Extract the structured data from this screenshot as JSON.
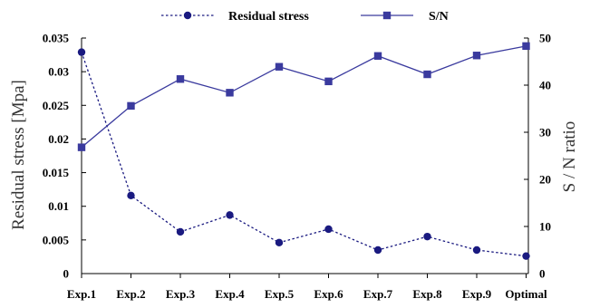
{
  "chart_data": {
    "type": "line",
    "categories": [
      "Exp.1",
      "Exp.2",
      "Exp.3",
      "Exp.4",
      "Exp.5",
      "Exp.6",
      "Exp.7",
      "Exp.8",
      "Exp.9",
      "Optimal"
    ],
    "series": [
      {
        "name": "Residual stress",
        "axis": "left",
        "style": "dotted",
        "marker": "circle",
        "color": "#1a1a80",
        "values": [
          0.0329,
          0.0116,
          0.0062,
          0.0087,
          0.0046,
          0.0066,
          0.0035,
          0.0055,
          0.0035,
          0.0026
        ]
      },
      {
        "name": "S/N",
        "axis": "right",
        "style": "solid",
        "marker": "square",
        "color": "#3a3a9e",
        "values": [
          26.8,
          35.6,
          41.3,
          38.4,
          43.9,
          40.8,
          46.2,
          42.3,
          46.3,
          48.3
        ]
      }
    ],
    "ylabel_left": "Residual stress [Mpa]",
    "ylabel_right": "S / N ratio",
    "ylim_left": [
      0,
      0.035
    ],
    "yticks_left": [
      0,
      0.005,
      0.01,
      0.015,
      0.02,
      0.025,
      0.03,
      0.035
    ],
    "yticklabels_left": [
      "0",
      "0.005",
      "0.01",
      "0.015",
      "0.02",
      "0.025",
      "0.03",
      "0.035"
    ],
    "ylim_right": [
      0,
      50
    ],
    "yticks_right": [
      0,
      10,
      20,
      30,
      40,
      50
    ],
    "yticklabels_right": [
      "0",
      "10",
      "20",
      "30",
      "40",
      "50"
    ],
    "grid": false,
    "legend_position": "top"
  }
}
